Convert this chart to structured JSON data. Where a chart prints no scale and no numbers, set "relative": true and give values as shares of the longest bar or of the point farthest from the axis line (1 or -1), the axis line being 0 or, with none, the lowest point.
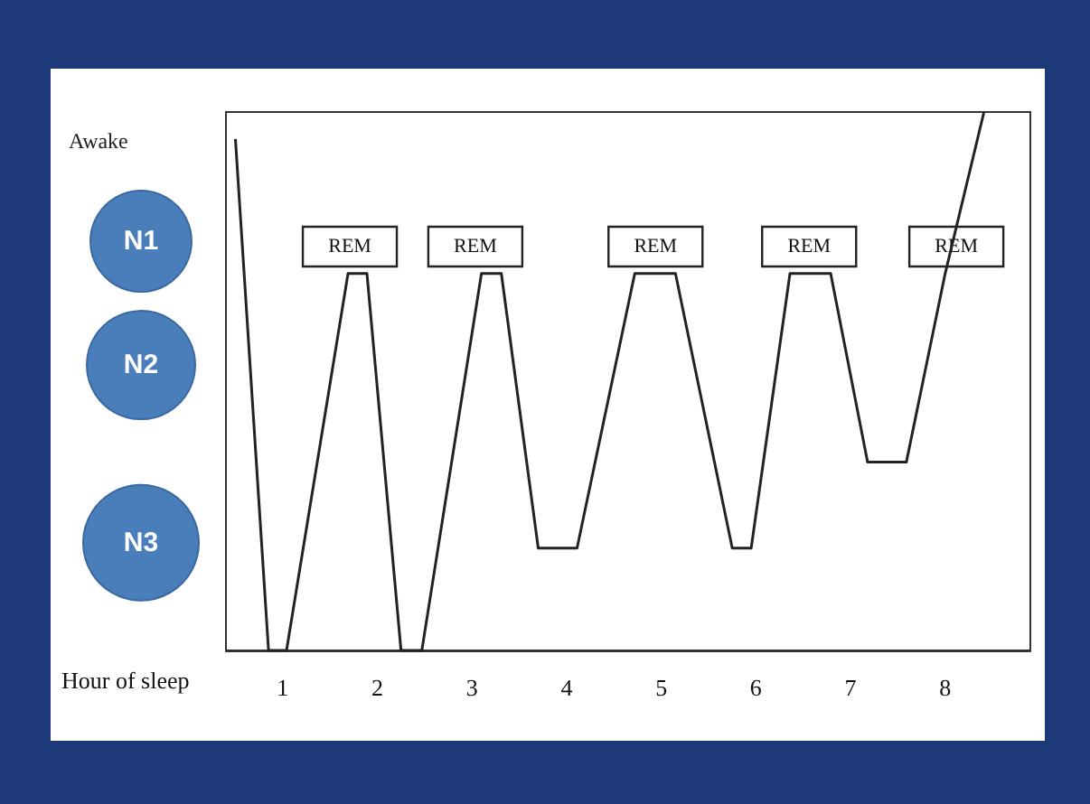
{
  "chart_data": {
    "type": "line",
    "xlabel": "Hour of sleep",
    "relative": true,
    "x": [
      0.5,
      0.85,
      1.04,
      1.69,
      1.89,
      2.25,
      2.47,
      3.1,
      3.31,
      3.7,
      4.11,
      4.72,
      5.15,
      5.75,
      5.95,
      6.36,
      6.79,
      7.18,
      7.59,
      8.0,
      8.41
    ],
    "series": [
      {
        "color": "#222222",
        "values": [
          0.95,
          0,
          0,
          0.7,
          0.7,
          0,
          0,
          0.7,
          0.7,
          0.19,
          0.19,
          0.7,
          0.7,
          0.19,
          0.19,
          0.7,
          0.7,
          0.35,
          0.35,
          0.7,
          1
        ]
      }
    ],
    "xlim": [
      0.4,
      8.9
    ],
    "xticks": [
      1,
      2,
      3,
      4,
      5,
      6,
      7,
      8
    ],
    "annotations": [
      "Awake",
      "N1",
      "N2",
      "N3",
      "REM",
      "REM",
      "REM",
      "REM",
      "REM"
    ],
    "marker": "none",
    "line_style": "solid",
    "grid": false
  }
}
